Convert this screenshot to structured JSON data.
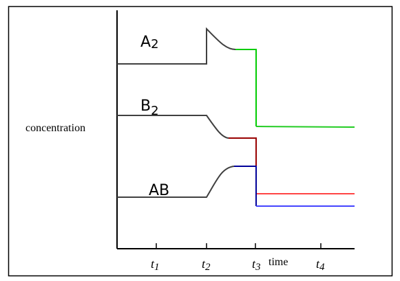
{
  "chart_data": {
    "type": "line",
    "ylabel": "concentration",
    "xlabel": "time",
    "x_ticks": [
      {
        "base": "t",
        "sub": "1"
      },
      {
        "base": "t",
        "sub": "2"
      },
      {
        "base": "t",
        "sub": "3"
      },
      {
        "base": "t",
        "sub": "4"
      }
    ],
    "series_labels": [
      {
        "base": "A",
        "sub": "2"
      },
      {
        "base": "B",
        "sub": "2"
      },
      {
        "base": "AB",
        "sub": ""
      }
    ],
    "colors": {
      "axis": "#000000",
      "curve": "#404040",
      "a2_new": "#00cc00",
      "a2_final": "#22cc22",
      "b2_new": "#990000",
      "b2_final": "#ff4444",
      "ab_new": "#000099",
      "ab_final": "#4444ff"
    }
  }
}
